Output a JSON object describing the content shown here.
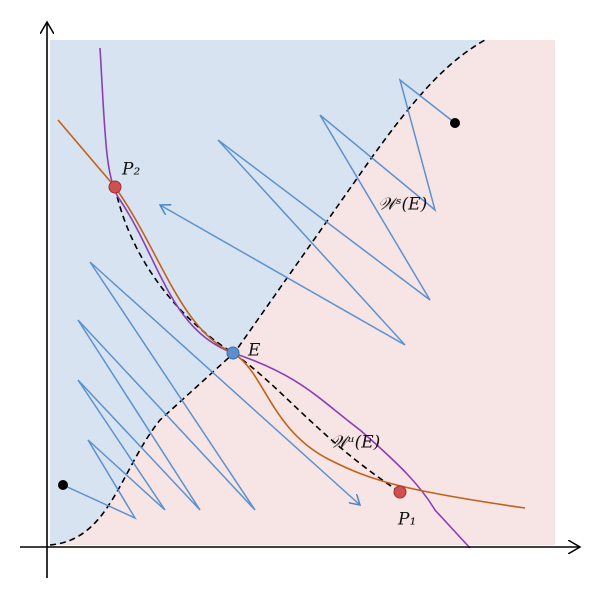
{
  "labels": {
    "p2": "P₂",
    "e": "E",
    "stable": "𝒲ˢ(E)",
    "unstable": "𝒲ᵘ(E)",
    "p1": "P₁"
  }
}
